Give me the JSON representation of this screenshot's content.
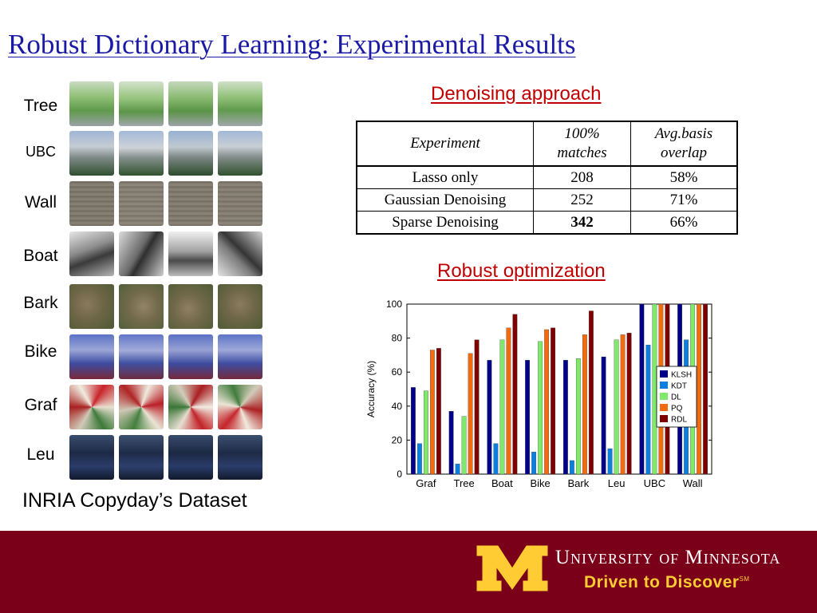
{
  "slide": {
    "title": "Robust Dictionary Learning: Experimental Results"
  },
  "dataset": {
    "row_labels": [
      "Tree",
      "UBC",
      "Wall",
      "Boat",
      "Bark",
      "Bike",
      "Graf",
      "Leu"
    ],
    "caption": "INRIA Copyday’s Dataset"
  },
  "denoising": {
    "heading": "Denoising approach",
    "headers": [
      [
        "Experiment"
      ],
      [
        "100%",
        "matches"
      ],
      [
        "Avg.basis",
        "overlap"
      ]
    ],
    "rows": [
      {
        "experiment": "Lasso only",
        "matches": "208",
        "overlap": "58%"
      },
      {
        "experiment": "Gaussian Denoising",
        "matches": "252",
        "overlap": "71%"
      },
      {
        "experiment": "Sparse Denoising",
        "matches": "342",
        "overlap": "66%"
      }
    ]
  },
  "robust": {
    "heading": "Robust optimization"
  },
  "chart_data": {
    "type": "bar",
    "categories": [
      "Graf",
      "Tree",
      "Boat",
      "Bike",
      "Bark",
      "Leu",
      "UBC",
      "Wall"
    ],
    "ylabel": "Accuracy (%)",
    "xlabel": "",
    "ylim": [
      0,
      100
    ],
    "yticks": [
      0,
      20,
      40,
      60,
      80,
      100
    ],
    "grid": false,
    "legend_position": "right",
    "series": [
      {
        "name": "KLSH",
        "color": "#00008b",
        "values": [
          51,
          37,
          67,
          67,
          67,
          69,
          100,
          100
        ]
      },
      {
        "name": "KDT",
        "color": "#0a7fe0",
        "values": [
          18,
          6,
          18,
          13,
          8,
          15,
          76,
          79
        ]
      },
      {
        "name": "DL",
        "color": "#80e86a",
        "values": [
          49,
          34,
          79,
          78,
          68,
          79,
          100,
          100
        ]
      },
      {
        "name": "PQ",
        "color": "#f26b0f",
        "values": [
          73,
          71,
          86,
          85,
          82,
          82,
          100,
          100
        ]
      },
      {
        "name": "RDL",
        "color": "#7f0000",
        "values": [
          74,
          79,
          94,
          86,
          96,
          83,
          100,
          100
        ]
      }
    ]
  },
  "footer": {
    "university": "University of Minnesota",
    "tagline": "Driven to Discover",
    "tagline_mark": "SM",
    "bar_color": "#7a0019",
    "accent_color": "#ffcc33"
  }
}
